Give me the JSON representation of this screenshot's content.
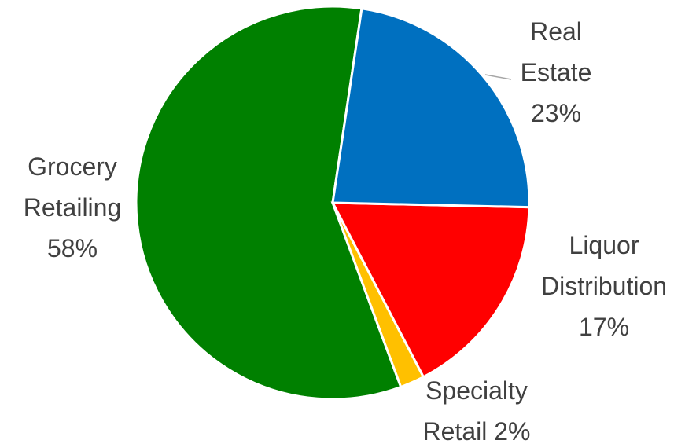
{
  "chart_data": {
    "type": "pie",
    "categories": [
      "Real Estate",
      "Liquor Distribution",
      "Specialty Retail",
      "Grocery Retailing"
    ],
    "values": [
      23,
      17,
      2,
      58
    ],
    "value_labels": [
      "23%",
      "17%",
      "2%",
      "58%"
    ],
    "colors": [
      "#0070c0",
      "#ff0000",
      "#ffc000",
      "#008000"
    ]
  }
}
